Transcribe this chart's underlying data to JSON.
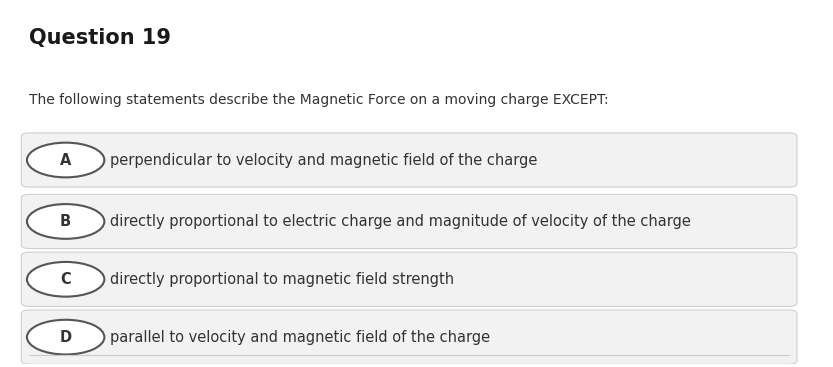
{
  "title": "Question 19",
  "question": "The following statements describe the Magnetic Force on a moving charge EXCEPT:",
  "options": [
    {
      "label": "A",
      "text": "perpendicular to velocity and magnetic field of the charge"
    },
    {
      "label": "B",
      "text": "directly proportional to electric charge and magnitude of velocity of the charge"
    },
    {
      "label": "C",
      "text": "directly proportional to magnetic field strength"
    },
    {
      "label": "D",
      "text": "parallel to velocity and magnetic field of the charge"
    }
  ],
  "bg_color": "#ffffff",
  "option_bg_color": "#f2f2f2",
  "option_border_color": "#d0d0d0",
  "title_fontsize": 15,
  "question_fontsize": 10,
  "option_fontsize": 10.5,
  "title_color": "#1a1a1a",
  "text_color": "#333333",
  "circle_edge_color": "#555555",
  "circle_face_color": "#ffffff",
  "divider_color": "#cccccc"
}
